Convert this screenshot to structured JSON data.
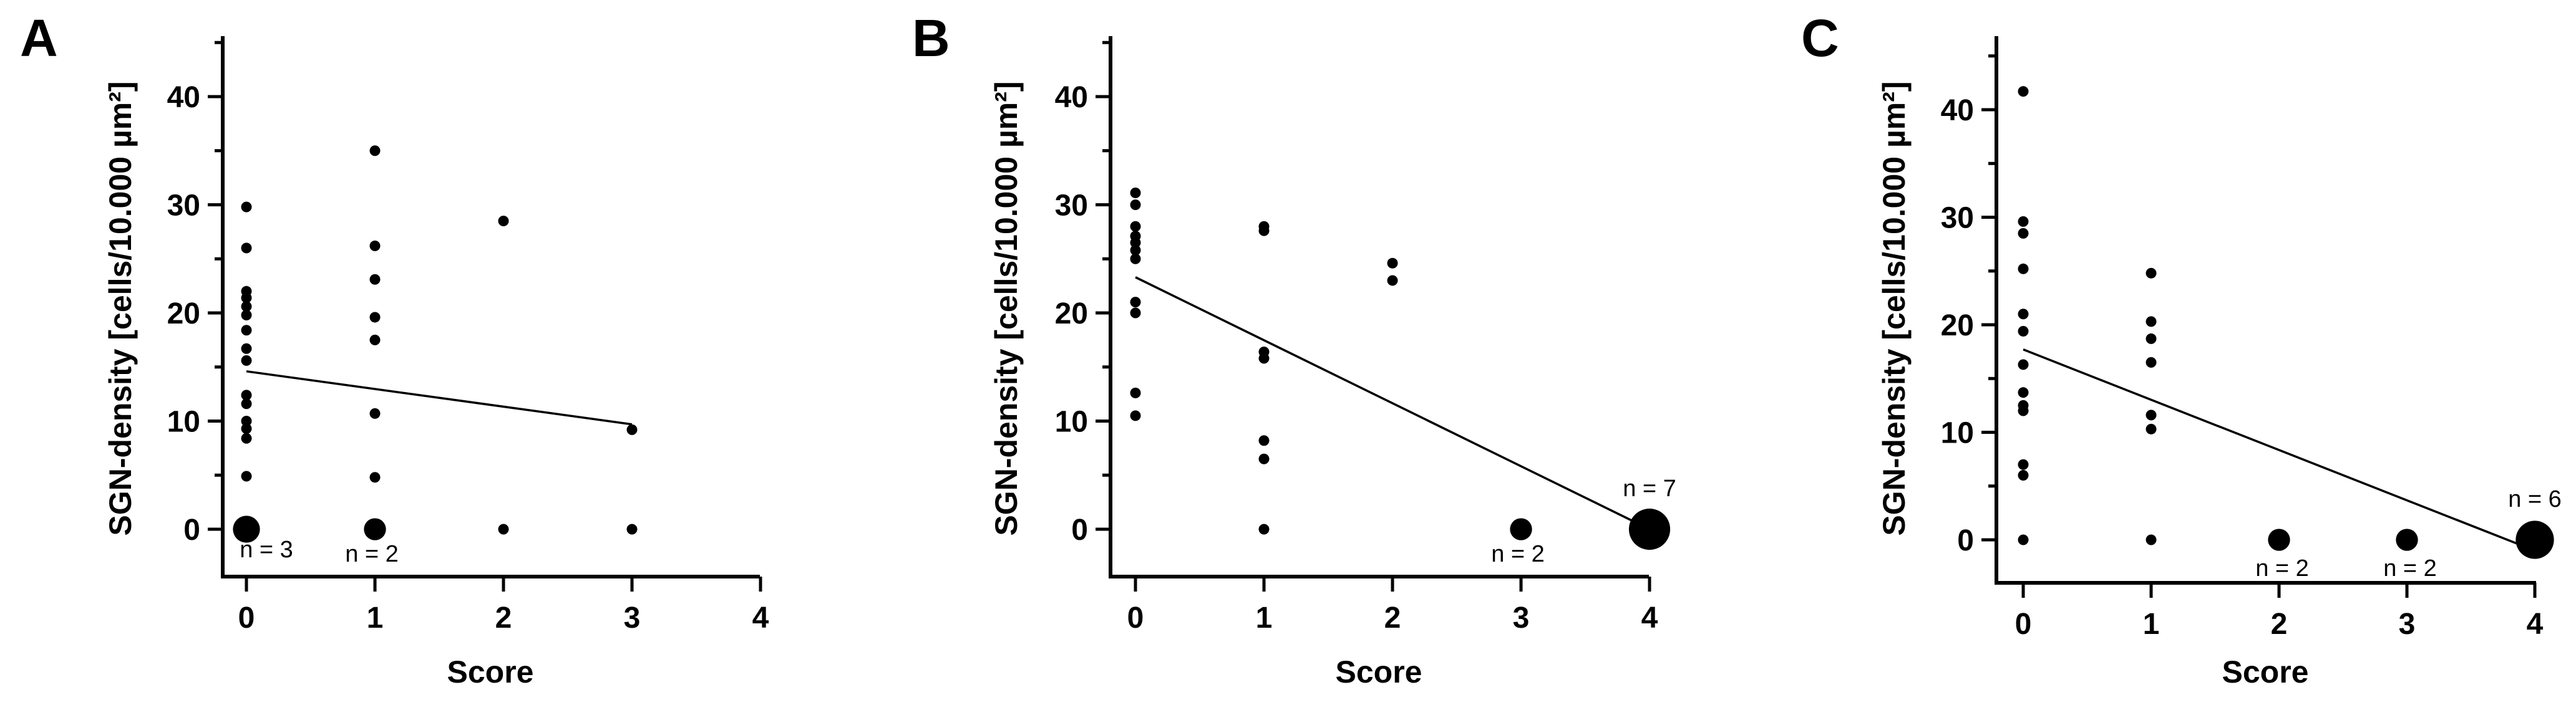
{
  "chart_data": [
    {
      "panel": "A",
      "type": "scatter",
      "xlabel": "Score",
      "ylabel": "SGN-density [cells/10.000 µm²]",
      "xlim": [
        0,
        4
      ],
      "ylim": [
        0,
        45
      ],
      "xticks": [
        "0",
        "1",
        "2",
        "3",
        "4"
      ],
      "yticks": [
        "0",
        "10",
        "20",
        "30",
        "40"
      ],
      "points": [
        {
          "x": 0,
          "y": 29.8
        },
        {
          "x": 0,
          "y": 26
        },
        {
          "x": 0,
          "y": 22
        },
        {
          "x": 0,
          "y": 21.4
        },
        {
          "x": 0,
          "y": 20.6
        },
        {
          "x": 0,
          "y": 19.8
        },
        {
          "x": 0,
          "y": 18.4
        },
        {
          "x": 0,
          "y": 16.7
        },
        {
          "x": 0,
          "y": 15.6
        },
        {
          "x": 0,
          "y": 12.4
        },
        {
          "x": 0,
          "y": 11.6
        },
        {
          "x": 0,
          "y": 10
        },
        {
          "x": 0,
          "y": 9.3
        },
        {
          "x": 0,
          "y": 8.4
        },
        {
          "x": 0,
          "y": 4.9
        },
        {
          "x": 1,
          "y": 35
        },
        {
          "x": 1,
          "y": 26.2
        },
        {
          "x": 1,
          "y": 23.1
        },
        {
          "x": 1,
          "y": 19.6
        },
        {
          "x": 1,
          "y": 17.5
        },
        {
          "x": 1,
          "y": 10.7
        },
        {
          "x": 1,
          "y": 4.8
        },
        {
          "x": 2,
          "y": 28.5
        },
        {
          "x": 2,
          "y": 0
        },
        {
          "x": 3,
          "y": 9.2
        },
        {
          "x": 3,
          "y": 0
        }
      ],
      "clusters": [
        {
          "x": 0,
          "y": 0,
          "n": 3,
          "label": "n = 3"
        },
        {
          "x": 1,
          "y": 0,
          "n": 2,
          "label": "n = 2"
        }
      ],
      "trendline": {
        "x": [
          0,
          3
        ],
        "y": [
          14.6,
          9.7
        ]
      }
    },
    {
      "panel": "B",
      "type": "scatter",
      "xlabel": "Score",
      "ylabel": "SGN-density [cells/10.000 µm²]",
      "xlim": [
        0,
        4
      ],
      "ylim": [
        0,
        45
      ],
      "xticks": [
        "0",
        "1",
        "2",
        "3",
        "4"
      ],
      "yticks": [
        "0",
        "10",
        "20",
        "30",
        "40"
      ],
      "points": [
        {
          "x": 0,
          "y": 31.1
        },
        {
          "x": 0,
          "y": 30
        },
        {
          "x": 0,
          "y": 28
        },
        {
          "x": 0,
          "y": 27.1
        },
        {
          "x": 0,
          "y": 26.5
        },
        {
          "x": 0,
          "y": 25.8
        },
        {
          "x": 0,
          "y": 25
        },
        {
          "x": 0,
          "y": 21
        },
        {
          "x": 0,
          "y": 20
        },
        {
          "x": 0,
          "y": 12.6
        },
        {
          "x": 0,
          "y": 10.5
        },
        {
          "x": 1,
          "y": 28
        },
        {
          "x": 1,
          "y": 27.6
        },
        {
          "x": 1,
          "y": 16.4
        },
        {
          "x": 1,
          "y": 15.8
        },
        {
          "x": 1,
          "y": 8.2
        },
        {
          "x": 1,
          "y": 6.5
        },
        {
          "x": 1,
          "y": 0
        },
        {
          "x": 2,
          "y": 24.6
        },
        {
          "x": 2,
          "y": 23
        }
      ],
      "clusters": [
        {
          "x": 3,
          "y": 0,
          "n": 2,
          "label": "n = 2"
        },
        {
          "x": 4,
          "y": 0,
          "n": 7,
          "label": "n = 7"
        }
      ],
      "trendline": {
        "x": [
          0,
          4
        ],
        "y": [
          23.3,
          0
        ]
      }
    },
    {
      "panel": "C",
      "type": "scatter",
      "xlabel": "Score",
      "ylabel": "SGN-density [cells/10.000 µm²]",
      "xlim": [
        0,
        4
      ],
      "ylim": [
        0,
        45
      ],
      "xticks": [
        "0",
        "1",
        "2",
        "3",
        "4"
      ],
      "yticks": [
        "0",
        "10",
        "20",
        "30",
        "40"
      ],
      "points": [
        {
          "x": 0,
          "y": 41.7
        },
        {
          "x": 0,
          "y": 29.6
        },
        {
          "x": 0,
          "y": 28.5
        },
        {
          "x": 0,
          "y": 25.2
        },
        {
          "x": 0,
          "y": 21
        },
        {
          "x": 0,
          "y": 19.4
        },
        {
          "x": 0,
          "y": 16.3
        },
        {
          "x": 0,
          "y": 13.7
        },
        {
          "x": 0,
          "y": 12.5
        },
        {
          "x": 0,
          "y": 12
        },
        {
          "x": 0,
          "y": 7
        },
        {
          "x": 0,
          "y": 6
        },
        {
          "x": 0,
          "y": 0
        },
        {
          "x": 1,
          "y": 24.8
        },
        {
          "x": 1,
          "y": 20.3
        },
        {
          "x": 1,
          "y": 18.7
        },
        {
          "x": 1,
          "y": 16.5
        },
        {
          "x": 1,
          "y": 11.6
        },
        {
          "x": 1,
          "y": 10.3
        },
        {
          "x": 1,
          "y": 0
        }
      ],
      "clusters": [
        {
          "x": 2,
          "y": 0,
          "n": 2,
          "label": "n = 2"
        },
        {
          "x": 3,
          "y": 0,
          "n": 2,
          "label": "n = 2"
        },
        {
          "x": 4,
          "y": 0,
          "n": 6,
          "label": "n = 6"
        }
      ],
      "trendline": {
        "x": [
          0,
          4
        ],
        "y": [
          17.7,
          -1
        ]
      }
    }
  ]
}
